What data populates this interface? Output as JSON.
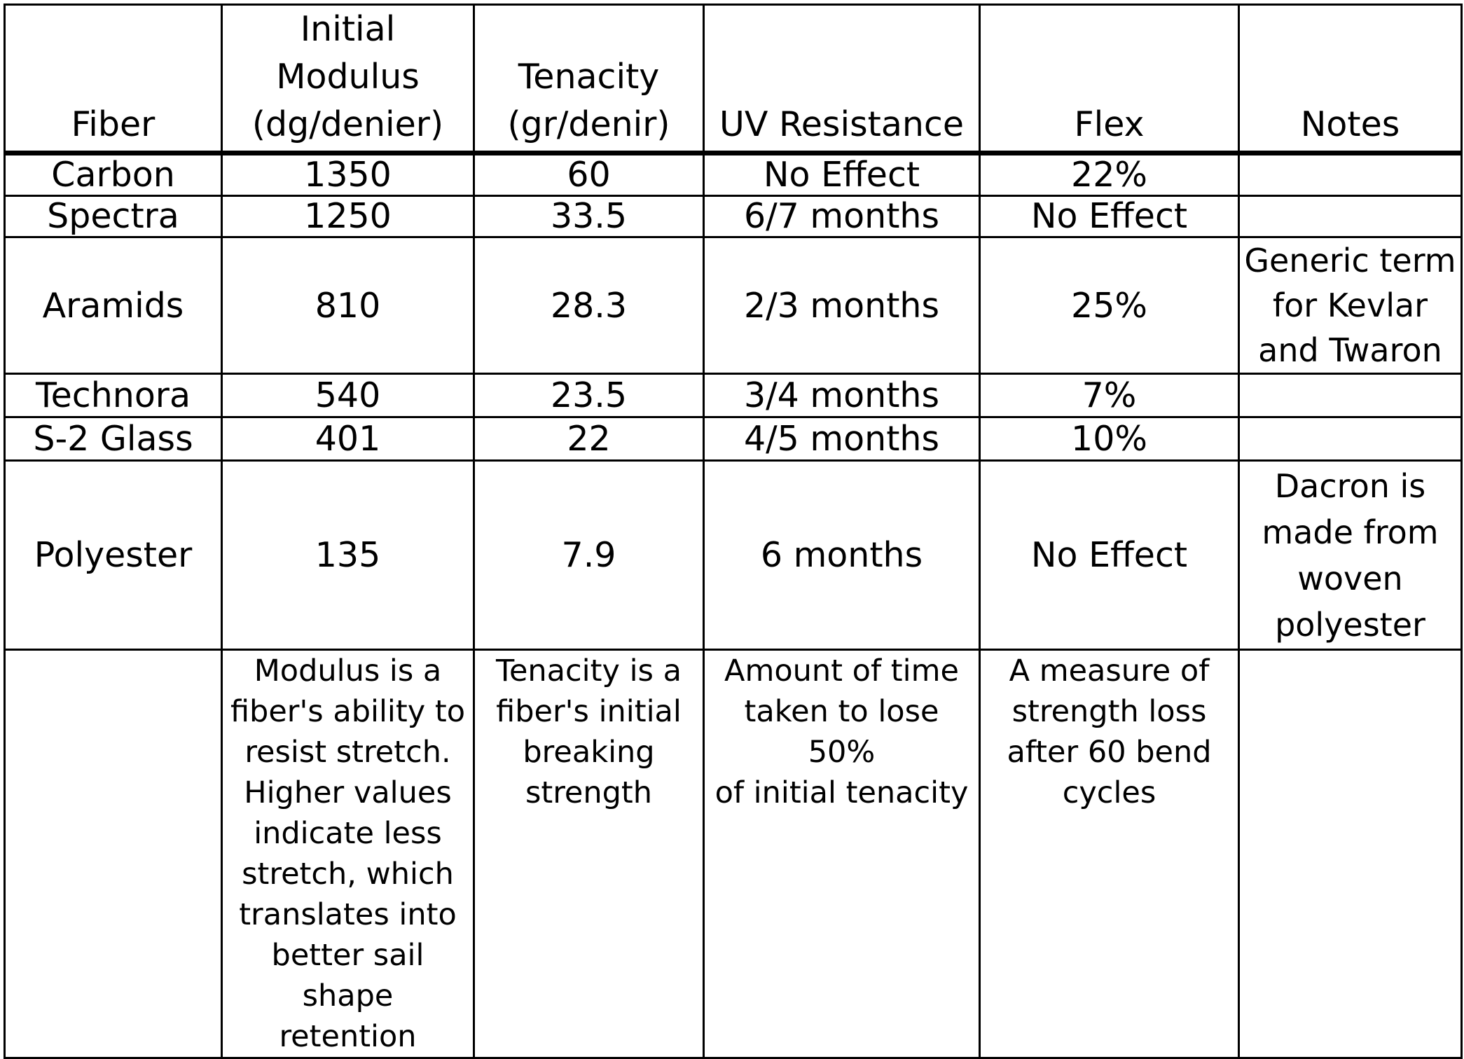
{
  "table": {
    "headers": [
      "Fiber",
      "Initial Modulus\n(dg/denier)",
      "Tenacity\n(gr/denir)",
      "UV Resistance",
      "Flex",
      "Notes"
    ],
    "rows": [
      [
        "Carbon",
        "1350",
        "60",
        "No Effect",
        "22%",
        ""
      ],
      [
        "Spectra",
        "1250",
        "33.5",
        "6/7 months",
        "No Effect",
        ""
      ],
      [
        "Aramids",
        "810",
        "28.3",
        "2/3 months",
        "25%",
        "Generic term\nfor Kevlar\nand Twaron"
      ],
      [
        "Technora",
        "540",
        "23.5",
        "3/4 months",
        "7%",
        ""
      ],
      [
        "S-2 Glass",
        "401",
        "22",
        "4/5 months",
        "10%",
        ""
      ],
      [
        "Polyester",
        "135",
        "7.9",
        "6 months",
        "No Effect",
        "Dacron is\nmade from\nwoven\npolyester"
      ]
    ],
    "notes_row": [
      "",
      "Modulus is a\nfiber's ability to\nresist stretch.\nHigher values\nindicate less\nstretch, which\ntranslates into\nbetter sail shape\nretention",
      "Tenacity is a\nfiber's initial\nbreaking\nstrength",
      "Amount of time\ntaken to lose 50%\nof initial tenacity",
      "A measure of\nstrength loss\nafter 60 bend\ncycles",
      ""
    ]
  }
}
